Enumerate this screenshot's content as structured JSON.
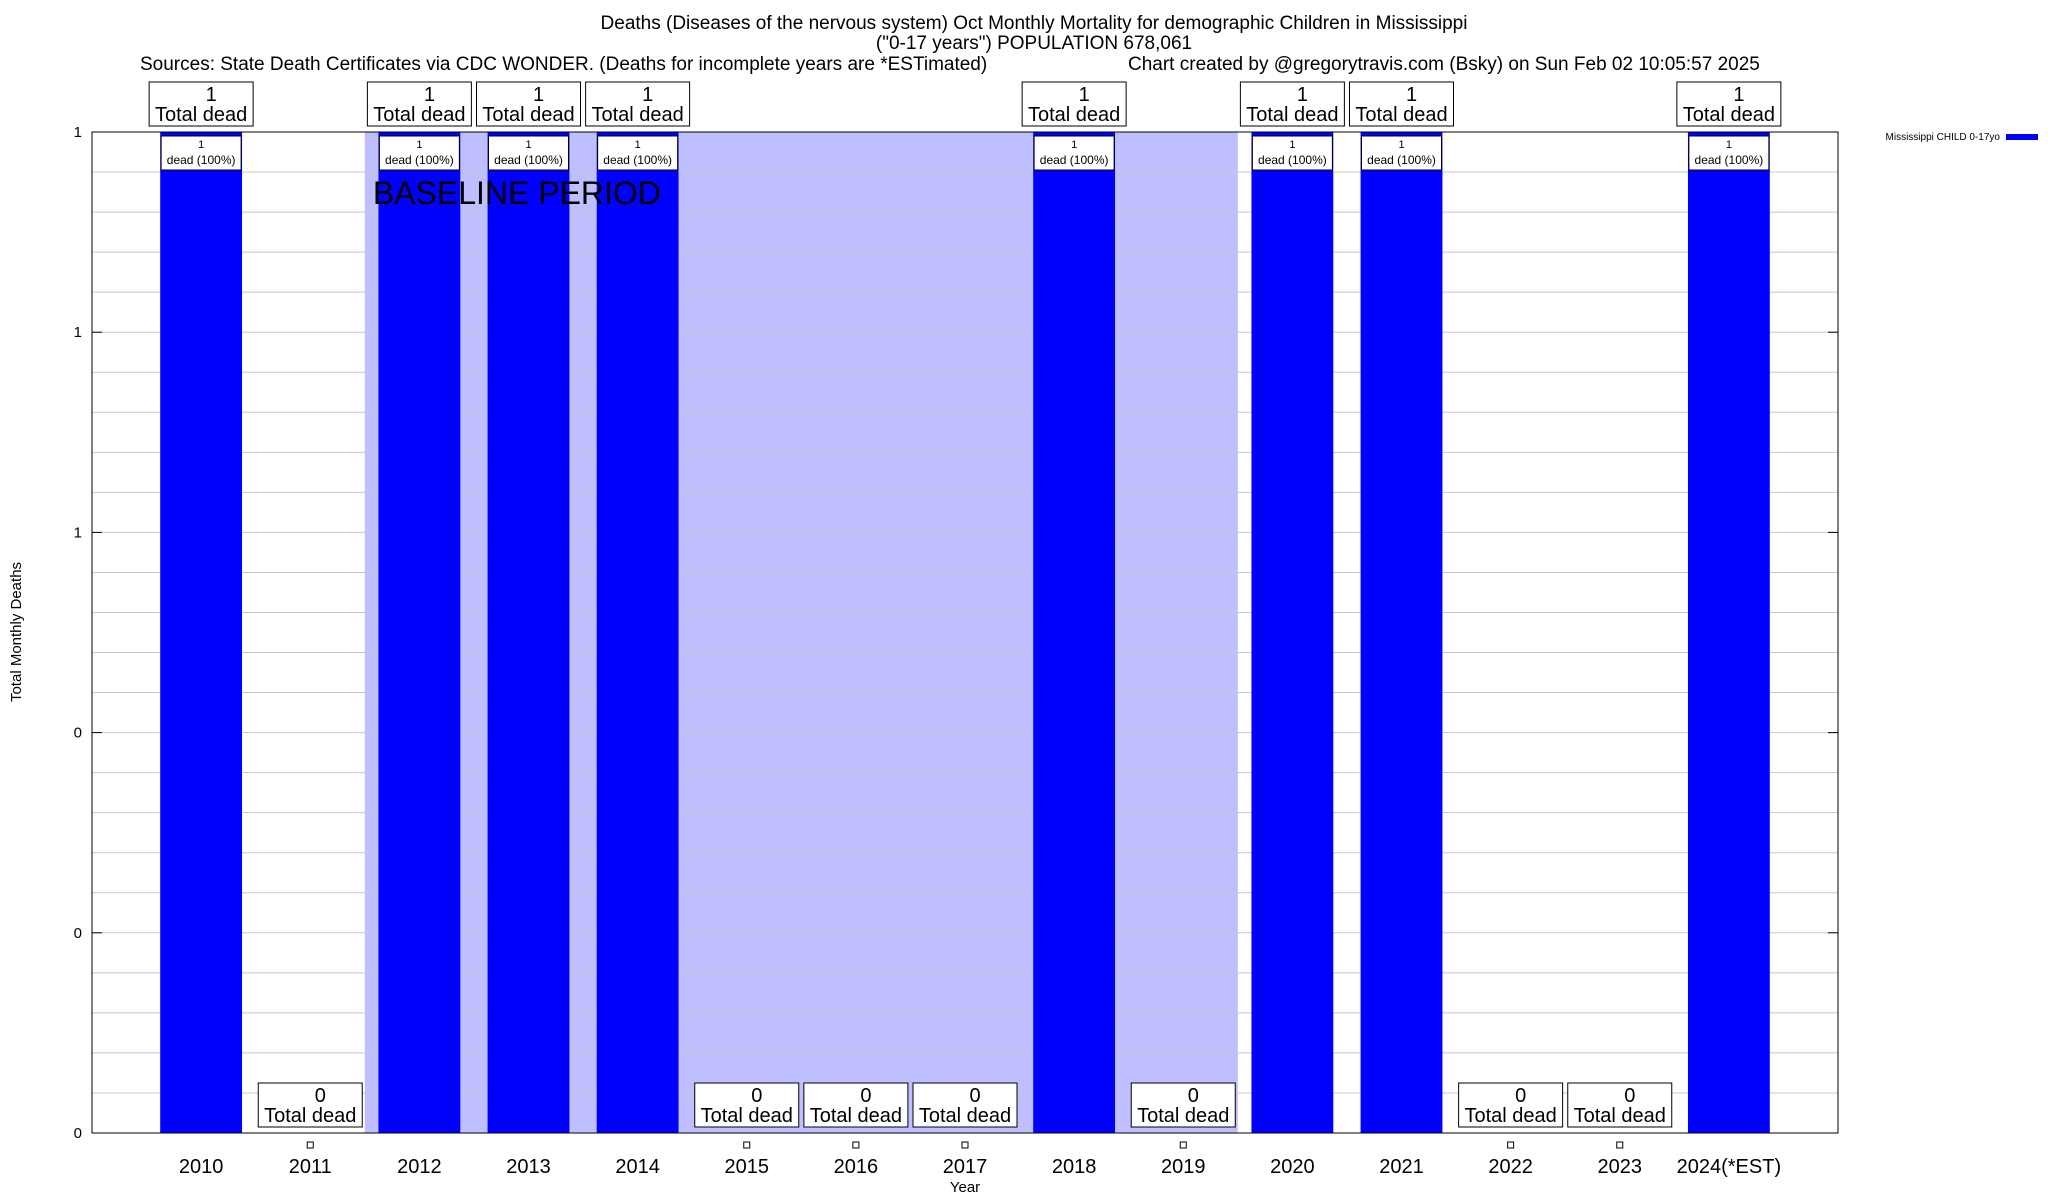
{
  "header": {
    "title": "Deaths (Diseases of the nervous system) Oct Monthly Mortality for demographic Children in Mississippi",
    "subtitle": "(\"0-17 years\") POPULATION 678,061",
    "sources": "Sources: State Death Certificates via CDC WONDER. (Deaths for incomplete years are *ESTimated)",
    "credit": "Chart created by @gregorytravis.com (Bsky) on Sun Feb 02 10:05:57 2025"
  },
  "chart_data": {
    "type": "bar",
    "categories": [
      "2010",
      "2011",
      "2012",
      "2013",
      "2014",
      "2015",
      "2016",
      "2017",
      "2018",
      "2019",
      "2020",
      "2021",
      "2022",
      "2023",
      "2024(*EST)"
    ],
    "series": [
      {
        "name": "Mississippi CHILD 0-17yo",
        "color": "#0000ff",
        "values": [
          1,
          0,
          1,
          1,
          1,
          0,
          0,
          0,
          1,
          0,
          1,
          1,
          0,
          0,
          1
        ]
      }
    ],
    "total_label_suffix": "Total dead",
    "bar_label_suffix": "dead (100%)",
    "xlabel": "Year",
    "ylabel": "Total Monthly Deaths",
    "ylim": [
      0,
      1
    ],
    "ytick_labels": [
      "0",
      "0",
      "0",
      "1",
      "1",
      "1"
    ],
    "grid": true,
    "legend_position": "top-right",
    "baseline": {
      "label": "BASELINE PERIOD",
      "start": "2012",
      "end": "2019",
      "color": "#bfbfff"
    }
  }
}
